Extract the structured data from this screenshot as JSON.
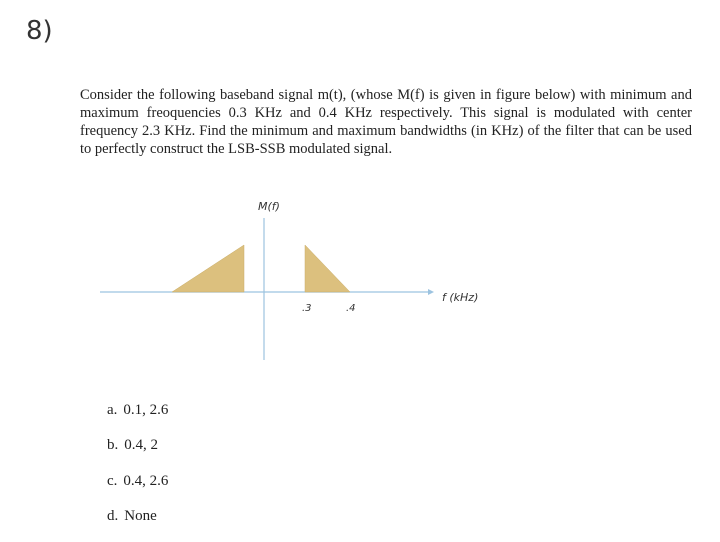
{
  "question": {
    "number": "8)",
    "text": "Consider the following baseband signal m(t), (whose M(f) is given in figure below) with minimum and maximum freoquencies 0.3 KHz and 0.4 KHz respectively. This signal is modulated with center frequency 2.3 KHz. Find the minimum and maximum bandwidths (in KHz) of the filter that can be used to perfectly construct the LSB-SSB modulated signal."
  },
  "figure": {
    "y_label": "M(f)",
    "x_label": "f (kHz)",
    "tick_labels": [
      ".3",
      ".4"
    ]
  },
  "options": [
    {
      "letter": "a.",
      "text": "0.1, 2.6"
    },
    {
      "letter": "b.",
      "text": "0.4, 2"
    },
    {
      "letter": "c.",
      "text": "0.4, 2.6"
    },
    {
      "letter": "d.",
      "text": "None"
    }
  ]
}
